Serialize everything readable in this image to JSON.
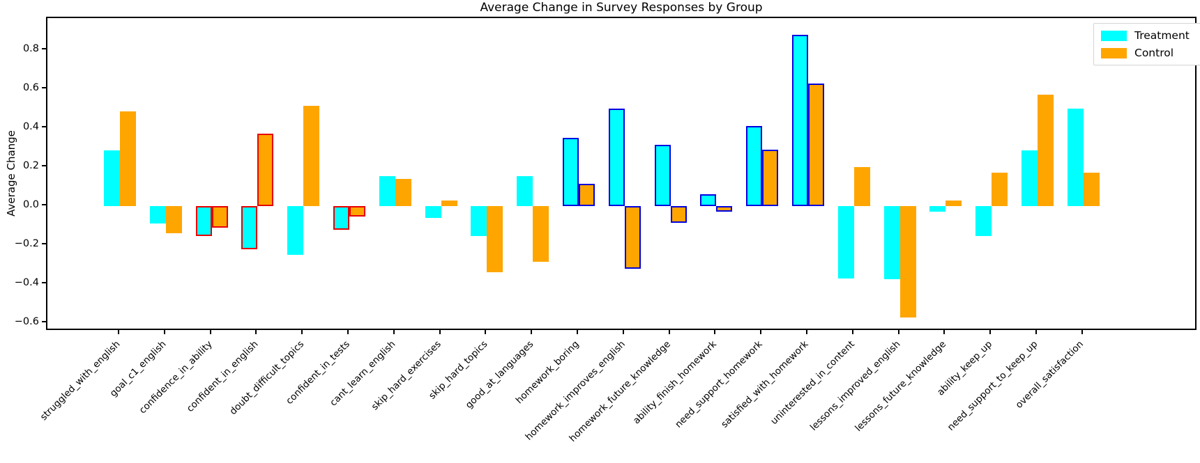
{
  "figure": {
    "title": "Average Change in Survey Responses by Group",
    "ylabel": "Average Change"
  },
  "legend": {
    "position": "upper right",
    "items": [
      {
        "label": "Treatment",
        "color": "#00ffff"
      },
      {
        "label": "Control",
        "color": "#ffa500"
      }
    ]
  },
  "chart_data": {
    "type": "bar",
    "title": "Average Change in Survey Responses by Group",
    "xlabel": "",
    "ylabel": "Average Change",
    "grid": false,
    "legend_position": "upper right",
    "ylim": [
      -0.64,
      0.96
    ],
    "yticks": [
      0.8,
      0.6,
      0.4,
      0.2,
      0.0,
      -0.2,
      -0.4,
      -0.6
    ],
    "categories": [
      "struggled_with_english",
      "goal_c1_english",
      "confidence_in_ability",
      "confident_in_english",
      "doubt_difficult_topics",
      "confident_in_tests",
      "cant_learn_english",
      "skip_hard_exercises",
      "skip_hard_topics",
      "good_at_languages",
      "homework_boring",
      "homework_improves_english",
      "homework_future_knowledge",
      "ability_finish_homework",
      "need_support_homework",
      "satisfied_with_homework",
      "uninterested_in_content",
      "lessons_improved_english",
      "lessons_future_knowledge",
      "ability_keep_up",
      "need_support_to_keep_up",
      "overall_satisfaction"
    ],
    "series": [
      {
        "name": "Treatment",
        "color": "#00ffff",
        "values": [
          0.285,
          -0.09,
          -0.155,
          -0.22,
          -0.25,
          -0.12,
          0.155,
          -0.06,
          -0.155,
          0.155,
          0.35,
          0.5,
          0.315,
          0.06,
          0.41,
          0.88,
          -0.37,
          -0.375,
          -0.03,
          -0.155,
          0.285,
          0.5
        ]
      },
      {
        "name": "Control",
        "color": "#ffa500",
        "values": [
          0.485,
          -0.14,
          -0.11,
          0.37,
          0.515,
          -0.055,
          0.14,
          0.03,
          -0.34,
          -0.285,
          0.115,
          -0.32,
          -0.085,
          -0.03,
          0.29,
          0.63,
          0.2,
          -0.57,
          0.03,
          0.17,
          0.57,
          0.17
        ]
      }
    ],
    "bar_edge_highlights": [
      "none",
      "none",
      "red",
      "red",
      "none",
      "red",
      "none",
      "none",
      "none",
      "none",
      "blue",
      "blue",
      "blue",
      "blue",
      "blue",
      "blue",
      "none",
      "none",
      "none",
      "none",
      "none",
      "none"
    ],
    "edge_colors": {
      "red": "#e60000",
      "blue": "#0000e0"
    }
  }
}
